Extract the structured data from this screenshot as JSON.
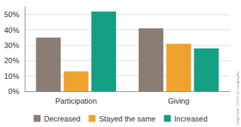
{
  "chart_data": {
    "type": "bar",
    "categories": [
      "Participation",
      "Giving"
    ],
    "series": [
      {
        "name": "Decreased",
        "color": "#8a7d74",
        "values": [
          35,
          41
        ]
      },
      {
        "name": "Stayed the same",
        "color": "#f0a22e",
        "values": [
          13,
          31
        ]
      },
      {
        "name": "Increased",
        "color": "#14a085",
        "values": [
          52,
          28
        ]
      }
    ],
    "ylim": [
      0,
      55
    ],
    "yticks": [
      {
        "value": 0,
        "label": "0%"
      },
      {
        "value": 10,
        "label": "10%"
      },
      {
        "value": 20,
        "label": "20%"
      },
      {
        "value": 30,
        "label": "30%"
      },
      {
        "value": 40,
        "label": "40%"
      },
      {
        "value": 50,
        "label": "50%"
      }
    ],
    "grid": true,
    "legend": "bottom",
    "annotation": "Graph from COVID-19 Congregatio"
  }
}
